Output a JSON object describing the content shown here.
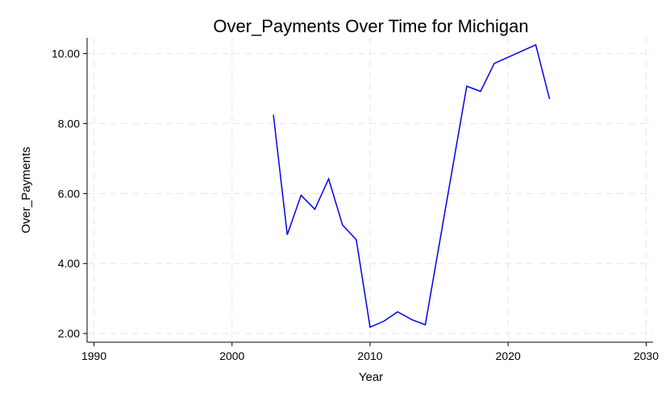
{
  "chart_data": {
    "type": "line",
    "title": "Over_Payments Over Time for Michigan",
    "xlabel": "Year",
    "ylabel": "Over_Payments",
    "xlim": [
      1989.5,
      2030.5
    ],
    "ylim": [
      1.75,
      10.45
    ],
    "xticks": [
      1990,
      2000,
      2010,
      2020,
      2030
    ],
    "xtick_labels": [
      "1990",
      "2000",
      "2010",
      "2020",
      "2030"
    ],
    "yticks": [
      2,
      4,
      6,
      8,
      10
    ],
    "ytick_labels": [
      "2.00",
      "4.00",
      "6.00",
      "8.00",
      "10.00"
    ],
    "grid": true,
    "legend": "none",
    "series": [
      {
        "color": "#0000ee",
        "x": [
          2003,
          2004,
          2005,
          2006,
          2007,
          2008,
          2009,
          2010,
          2011,
          2012,
          2013,
          2014,
          2017,
          2018,
          2019,
          2022,
          2023
        ],
        "y": [
          8.25,
          4.82,
          5.95,
          5.55,
          6.42,
          5.1,
          4.68,
          2.18,
          2.35,
          2.62,
          2.4,
          2.25,
          9.07,
          8.92,
          9.72,
          10.25,
          8.7
        ]
      }
    ]
  }
}
